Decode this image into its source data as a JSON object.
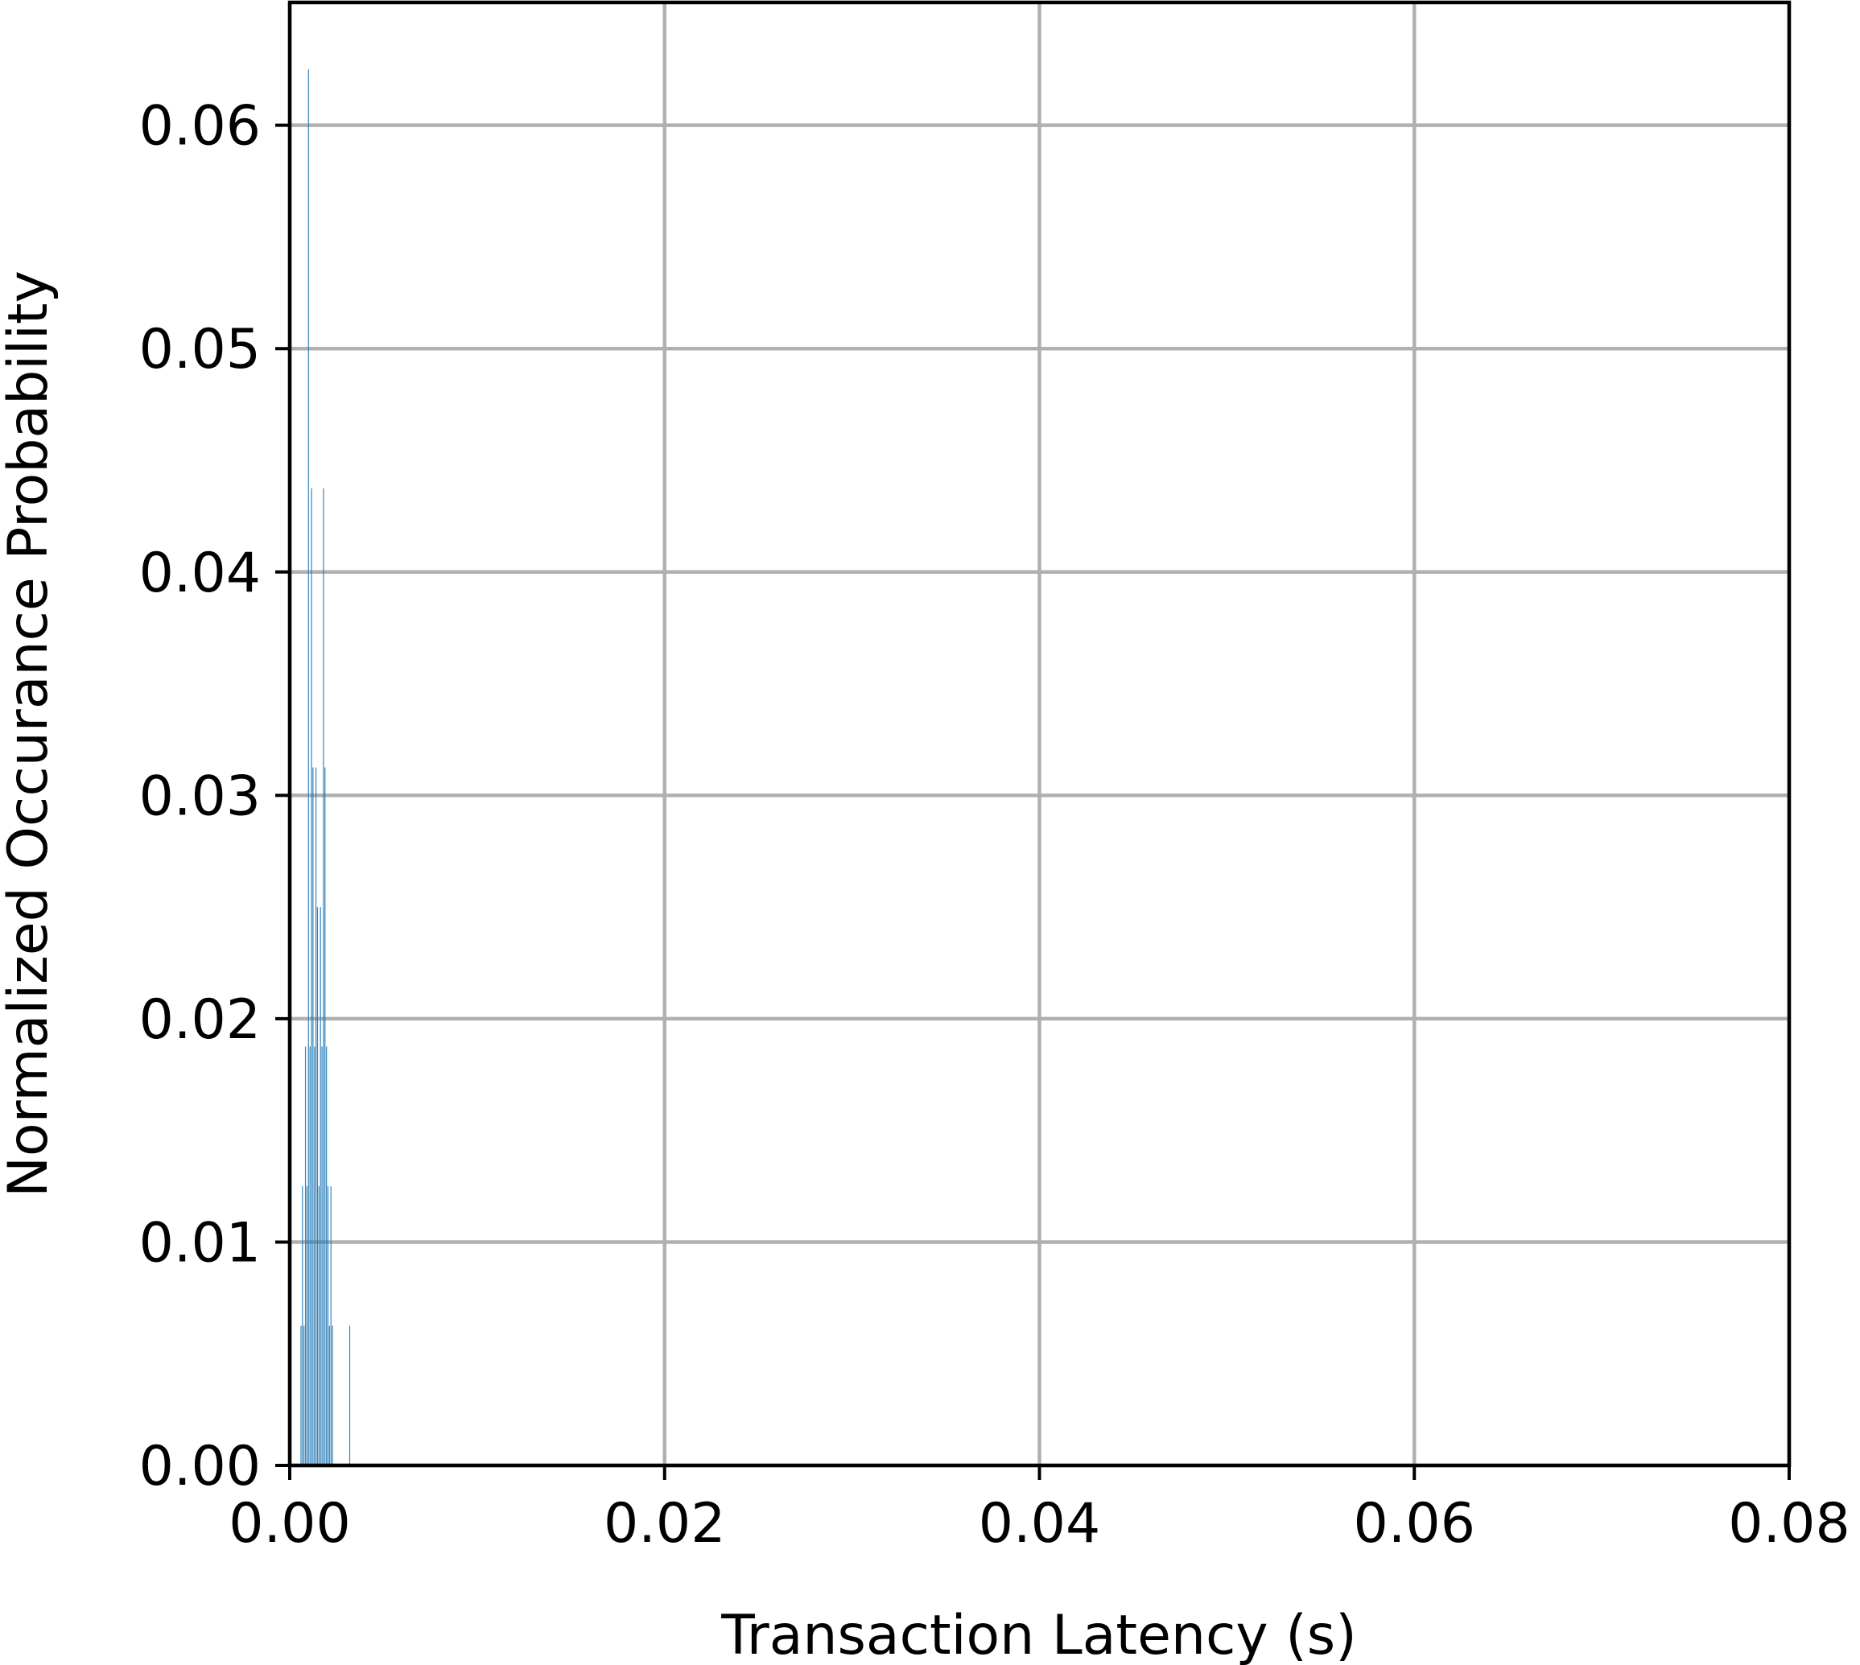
{
  "chart_data": {
    "type": "bar",
    "title": "",
    "xlabel": "Transaction Latency (s)",
    "ylabel": "Normalized Occurance Probability",
    "xlim": [
      0,
      0.08
    ],
    "ylim": [
      0,
      0.0655
    ],
    "xticks": [
      "0.00",
      "0.02",
      "0.04",
      "0.06",
      "0.08"
    ],
    "yticks": [
      "0.00",
      "0.01",
      "0.02",
      "0.03",
      "0.04",
      "0.05",
      "0.06"
    ],
    "grid": true,
    "bar_color": "#1f77b4",
    "bin_width": 4e-05,
    "series": [
      {
        "x": [
          0.0006,
          0.00068,
          0.00076,
          0.00084,
          0.00092,
          0.001,
          0.00108,
          0.00116,
          0.00124,
          0.00132,
          0.0014,
          0.00148,
          0.00156,
          0.00164,
          0.00172,
          0.0018,
          0.00188,
          0.00196,
          0.00204,
          0.00212,
          0.0022,
          0.00228,
          0.0032
        ],
        "y": [
          0.00625,
          0.0125,
          0.00625,
          0.01875,
          0.0125,
          0.0625,
          0.01875,
          0.04375,
          0.03125,
          0.01875,
          0.03125,
          0.025,
          0.0125,
          0.025,
          0.01875,
          0.04375,
          0.03125,
          0.01875,
          0.0125,
          0.00625,
          0.0125,
          0.00625,
          0.00625
        ]
      }
    ]
  }
}
